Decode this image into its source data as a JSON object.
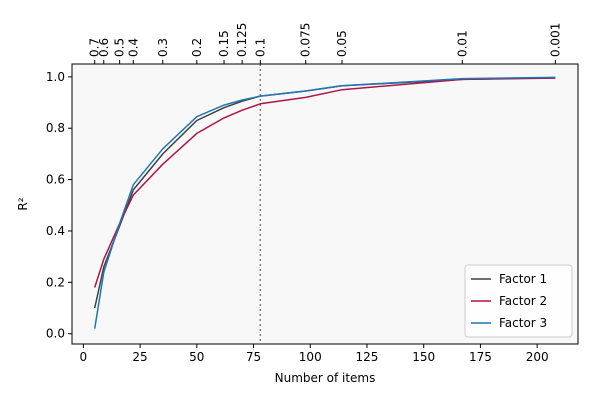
{
  "chart_data": {
    "type": "line",
    "title": "",
    "xlabel": "Number of items",
    "ylabel": "R²",
    "xlim": [
      -5,
      218
    ],
    "ylim": [
      -0.04,
      1.05
    ],
    "grid": false,
    "legend_position": "lower-right",
    "plot_background": "#f8f8f8",
    "x_ticks": [
      0,
      25,
      50,
      75,
      100,
      125,
      150,
      175,
      200
    ],
    "x_tick_labels": [
      "0",
      "25",
      "50",
      "75",
      "100",
      "125",
      "150",
      "175",
      "200"
    ],
    "y_ticks": [
      0.0,
      0.2,
      0.4,
      0.6,
      0.8,
      1.0
    ],
    "y_tick_labels": [
      "0.0",
      "0.2",
      "0.4",
      "0.6",
      "0.8",
      "1.0"
    ],
    "top_axis": {
      "ticks": [
        {
          "x": 5,
          "label": "0.7"
        },
        {
          "x": 9,
          "label": "0.6"
        },
        {
          "x": 16,
          "label": "0.5"
        },
        {
          "x": 22,
          "label": "0.4"
        },
        {
          "x": 35,
          "label": "0.3"
        },
        {
          "x": 50,
          "label": "0.2"
        },
        {
          "x": 62,
          "label": "0.15"
        },
        {
          "x": 70,
          "label": "0.125"
        },
        {
          "x": 78,
          "label": "0.1"
        },
        {
          "x": 98,
          "label": "0.075"
        },
        {
          "x": 114,
          "label": "0.05"
        },
        {
          "x": 167,
          "label": "0.01"
        },
        {
          "x": 208,
          "label": "0.001"
        }
      ]
    },
    "reference_line": {
      "x": 78,
      "style": "dotted",
      "color": "#808080"
    },
    "x": [
      5,
      9,
      16,
      22,
      35,
      50,
      62,
      70,
      78,
      98,
      114,
      167,
      208
    ],
    "series": [
      {
        "name": "Factor 1",
        "color": "#404040",
        "values": [
          0.1,
          0.26,
          0.42,
          0.56,
          0.7,
          0.83,
          0.88,
          0.905,
          0.925,
          0.945,
          0.965,
          0.99,
          0.997
        ]
      },
      {
        "name": "Factor 2",
        "color": "#b0144a",
        "values": [
          0.18,
          0.29,
          0.43,
          0.54,
          0.66,
          0.78,
          0.84,
          0.87,
          0.895,
          0.92,
          0.95,
          0.99,
          0.995
        ]
      },
      {
        "name": "Factor 3",
        "color": "#1f77b4",
        "values": [
          0.02,
          0.24,
          0.43,
          0.58,
          0.72,
          0.845,
          0.89,
          0.91,
          0.925,
          0.945,
          0.965,
          0.993,
          0.998
        ]
      }
    ]
  }
}
